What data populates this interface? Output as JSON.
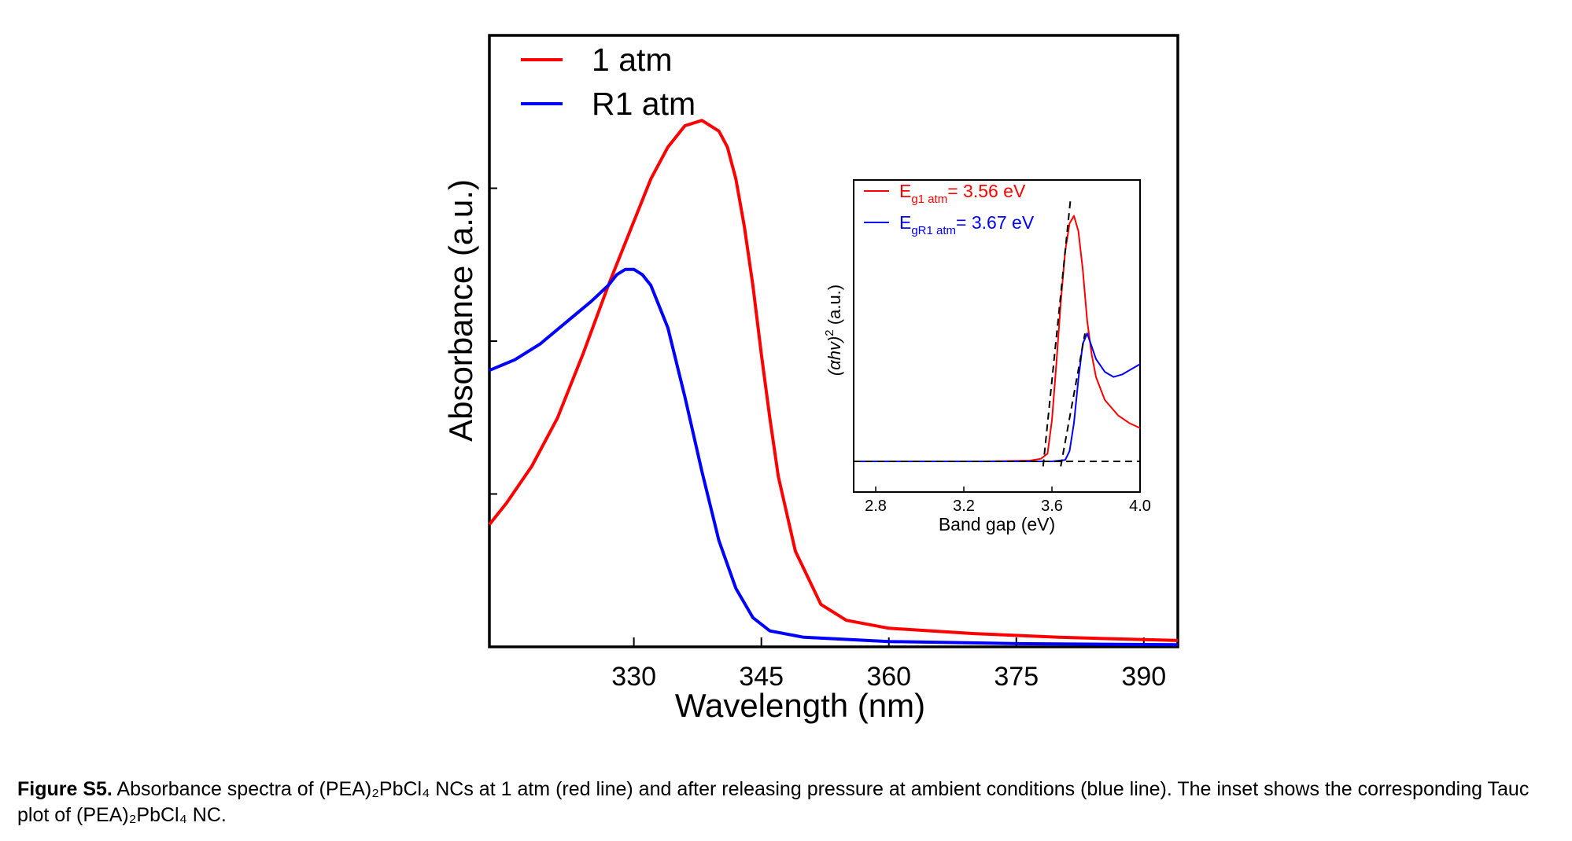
{
  "chart_data": [
    {
      "type": "line",
      "xlabel": "Wavelength (nm)",
      "ylabel": "Absorbance (a.u.)",
      "xlim": [
        313,
        394
      ],
      "ylim": [
        0,
        1.15
      ],
      "xticks": [
        330,
        345,
        360,
        375,
        390
      ],
      "ytick_labels_shown": false,
      "grid": false,
      "legend_placement": "top-left",
      "series": [
        {
          "name": "1 atm",
          "color": "#ff0000",
          "x": [
            313,
            315,
            318,
            321,
            324,
            327,
            330,
            332,
            334,
            336,
            338,
            340,
            341,
            342,
            343,
            344,
            345,
            346,
            347,
            349,
            352,
            355,
            360,
            370,
            380,
            394
          ],
          "y": [
            0.23,
            0.27,
            0.34,
            0.43,
            0.55,
            0.68,
            0.8,
            0.88,
            0.94,
            0.98,
            0.99,
            0.97,
            0.94,
            0.88,
            0.79,
            0.68,
            0.55,
            0.43,
            0.32,
            0.18,
            0.08,
            0.05,
            0.035,
            0.025,
            0.018,
            0.012
          ]
        },
        {
          "name": "R1 atm",
          "color": "#0000ff",
          "x": [
            313,
            316,
            319,
            322,
            325,
            327,
            328,
            329,
            330,
            331,
            332,
            334,
            336,
            338,
            340,
            342,
            344,
            346,
            350,
            360,
            375,
            394
          ],
          "y": [
            0.52,
            0.54,
            0.57,
            0.61,
            0.65,
            0.68,
            0.7,
            0.71,
            0.71,
            0.7,
            0.68,
            0.6,
            0.47,
            0.33,
            0.2,
            0.11,
            0.055,
            0.03,
            0.018,
            0.01,
            0.006,
            0.004
          ]
        }
      ]
    },
    {
      "type": "line",
      "role": "inset",
      "xlabel": "Band gap (eV)",
      "ylabel": "(αhν)² (a.u.)",
      "ylabel_main": "(αhv)",
      "ylabel_sup": "2",
      "ylabel_rest": " (a.u.)",
      "xlim": [
        2.7,
        4.0
      ],
      "ylim": [
        -0.12,
        1.1
      ],
      "xticks": [
        2.8,
        3.2,
        3.6,
        4.0
      ],
      "xtick_labels": [
        "2.8",
        "3.2",
        "3.6",
        "4.0"
      ],
      "legend_placement": "top-left",
      "series": [
        {
          "name": "Eg1 atm= 3.56 eV",
          "name_main": "E",
          "name_sub": "g1 atm",
          "name_rest": "= 3.56 eV",
          "color": "#ff0000",
          "x": [
            2.7,
            3.0,
            3.3,
            3.5,
            3.55,
            3.58,
            3.6,
            3.62,
            3.64,
            3.66,
            3.68,
            3.7,
            3.72,
            3.74,
            3.76,
            3.78,
            3.8,
            3.84,
            3.9,
            3.95,
            4.0
          ],
          "y": [
            0,
            0,
            0,
            0.003,
            0.01,
            0.03,
            0.16,
            0.38,
            0.62,
            0.82,
            0.93,
            0.96,
            0.9,
            0.75,
            0.55,
            0.42,
            0.33,
            0.24,
            0.18,
            0.15,
            0.13
          ]
        },
        {
          "name": "EgR1 atm= 3.67 eV",
          "name_main": "E",
          "name_sub": "gR1 atm",
          "name_rest": "= 3.67 eV",
          "color": "#0000ff",
          "x": [
            2.7,
            3.3,
            3.6,
            3.66,
            3.68,
            3.7,
            3.72,
            3.74,
            3.76,
            3.78,
            3.8,
            3.84,
            3.88,
            3.92,
            3.96,
            4.0
          ],
          "y": [
            0,
            0,
            0,
            0.005,
            0.04,
            0.15,
            0.32,
            0.46,
            0.5,
            0.45,
            0.4,
            0.35,
            0.33,
            0.34,
            0.36,
            0.38
          ]
        }
      ],
      "fit_lines": [
        {
          "x": [
            3.56,
            3.685
          ],
          "y": [
            -0.02,
            1.03
          ]
        },
        {
          "x": [
            3.64,
            3.75
          ],
          "y": [
            -0.02,
            0.5
          ]
        },
        {
          "x": [
            2.7,
            4.0
          ],
          "y": [
            0,
            0
          ]
        }
      ]
    }
  ],
  "caption": {
    "label": "Figure S5.",
    "text": " Absorbance spectra of (PEA)₂PbCl₄ NCs at 1 atm (red line) and after releasing pressure at ambient conditions (blue line). The inset shows the corresponding Tauc plot of (PEA)₂PbCl₄ NC."
  }
}
